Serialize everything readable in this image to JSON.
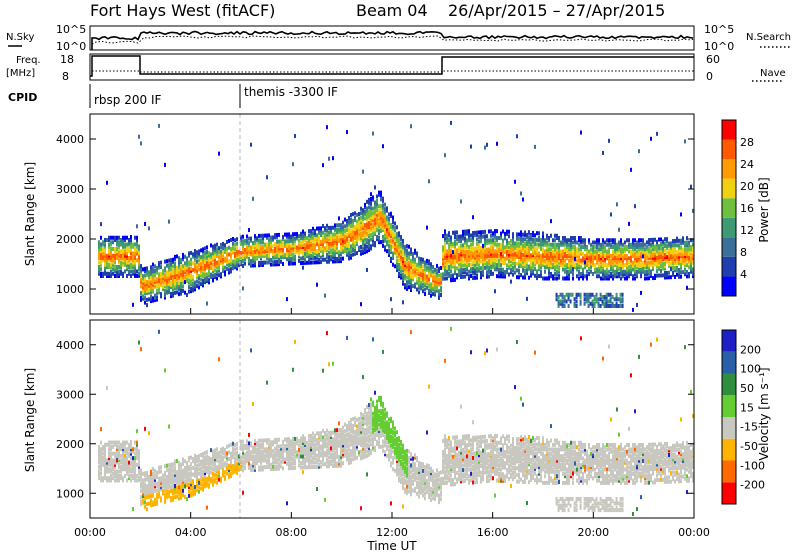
{
  "header": {
    "station": "Fort Hays West (fitACF)",
    "beam": "Beam 04",
    "dates": "26/Apr/2015 – 27/Apr/2015"
  },
  "noise_panel": {
    "left_label": "N.Sky",
    "left_ticks": [
      "10^5",
      "10^0"
    ],
    "right_ticks": [
      "10^5",
      "10^0"
    ],
    "right_label": "N.Search"
  },
  "freq_panel": {
    "left_label_1": "Freq.",
    "left_label_2": "[MHz]",
    "left_ticks": [
      "18",
      "8"
    ],
    "right_ticks": [
      "60",
      "0"
    ],
    "right_label": "Nave"
  },
  "cpid_panel": {
    "label": "CPID",
    "segments": [
      {
        "text": "rbsp 200 IF",
        "start_hour": 0
      },
      {
        "text": "themis -3300 IF",
        "start_hour": 6
      }
    ]
  },
  "colors": {
    "power": [
      "#0000ff",
      "#1f3fae",
      "#3a6f9a",
      "#3f9a72",
      "#6fbf3f",
      "#f0d010",
      "#ff9a00",
      "#ff5a00",
      "#ff0000"
    ],
    "velocity": [
      "#ff0000",
      "#ff6a00",
      "#ffb400",
      "#c8c8c0",
      "#66cc33",
      "#2f8f3f",
      "#2a5faa",
      "#1f1fc8"
    ]
  },
  "chart_data": [
    {
      "type": "heatmap",
      "quantity": "Power",
      "ylabel": "Slant Range [km]",
      "yticks": [
        1000,
        2000,
        3000,
        4000
      ],
      "ylim": [
        500,
        4500
      ],
      "x_tick_labels": [
        "00:00",
        "04:00",
        "08:00",
        "12:00",
        "16:00",
        "20:00",
        "00:00"
      ],
      "xlim_hours": [
        0,
        24
      ],
      "colorbar_label": "Power [dB]",
      "colorbar_ticks": [
        "4",
        "8",
        "12",
        "16",
        "20",
        "24",
        "28"
      ],
      "backscatter_band": {
        "hours": [
          0,
          1.9,
          2,
          4,
          6,
          8,
          10,
          11,
          11.5,
          12.5,
          13.9,
          14,
          16,
          18,
          20,
          22,
          24
        ],
        "center_km": [
          1700,
          1700,
          1100,
          1400,
          1800,
          1850,
          2000,
          2300,
          2500,
          1500,
          1150,
          1700,
          1750,
          1700,
          1650,
          1650,
          1700
        ],
        "width_km": [
          400,
          400,
          350,
          400,
          300,
          300,
          400,
          500,
          500,
          450,
          300,
          500,
          450,
          450,
          400,
          400,
          400
        ]
      }
    },
    {
      "type": "heatmap",
      "quantity": "Velocity",
      "ylabel": "Slant Range [km]",
      "yticks": [
        1000,
        2000,
        3000,
        4000
      ],
      "ylim": [
        500,
        4500
      ],
      "x_tick_labels": [
        "00:00",
        "04:00",
        "08:00",
        "12:00",
        "16:00",
        "20:00",
        "00:00"
      ],
      "xlim_hours": [
        0,
        24
      ],
      "xlabel": "Time UT",
      "colorbar_label": "Velocity [m s⁻¹]",
      "colorbar_ticks": [
        "200",
        "100",
        "50",
        "15",
        "-15",
        "-50",
        "-100",
        "-200"
      ]
    }
  ]
}
